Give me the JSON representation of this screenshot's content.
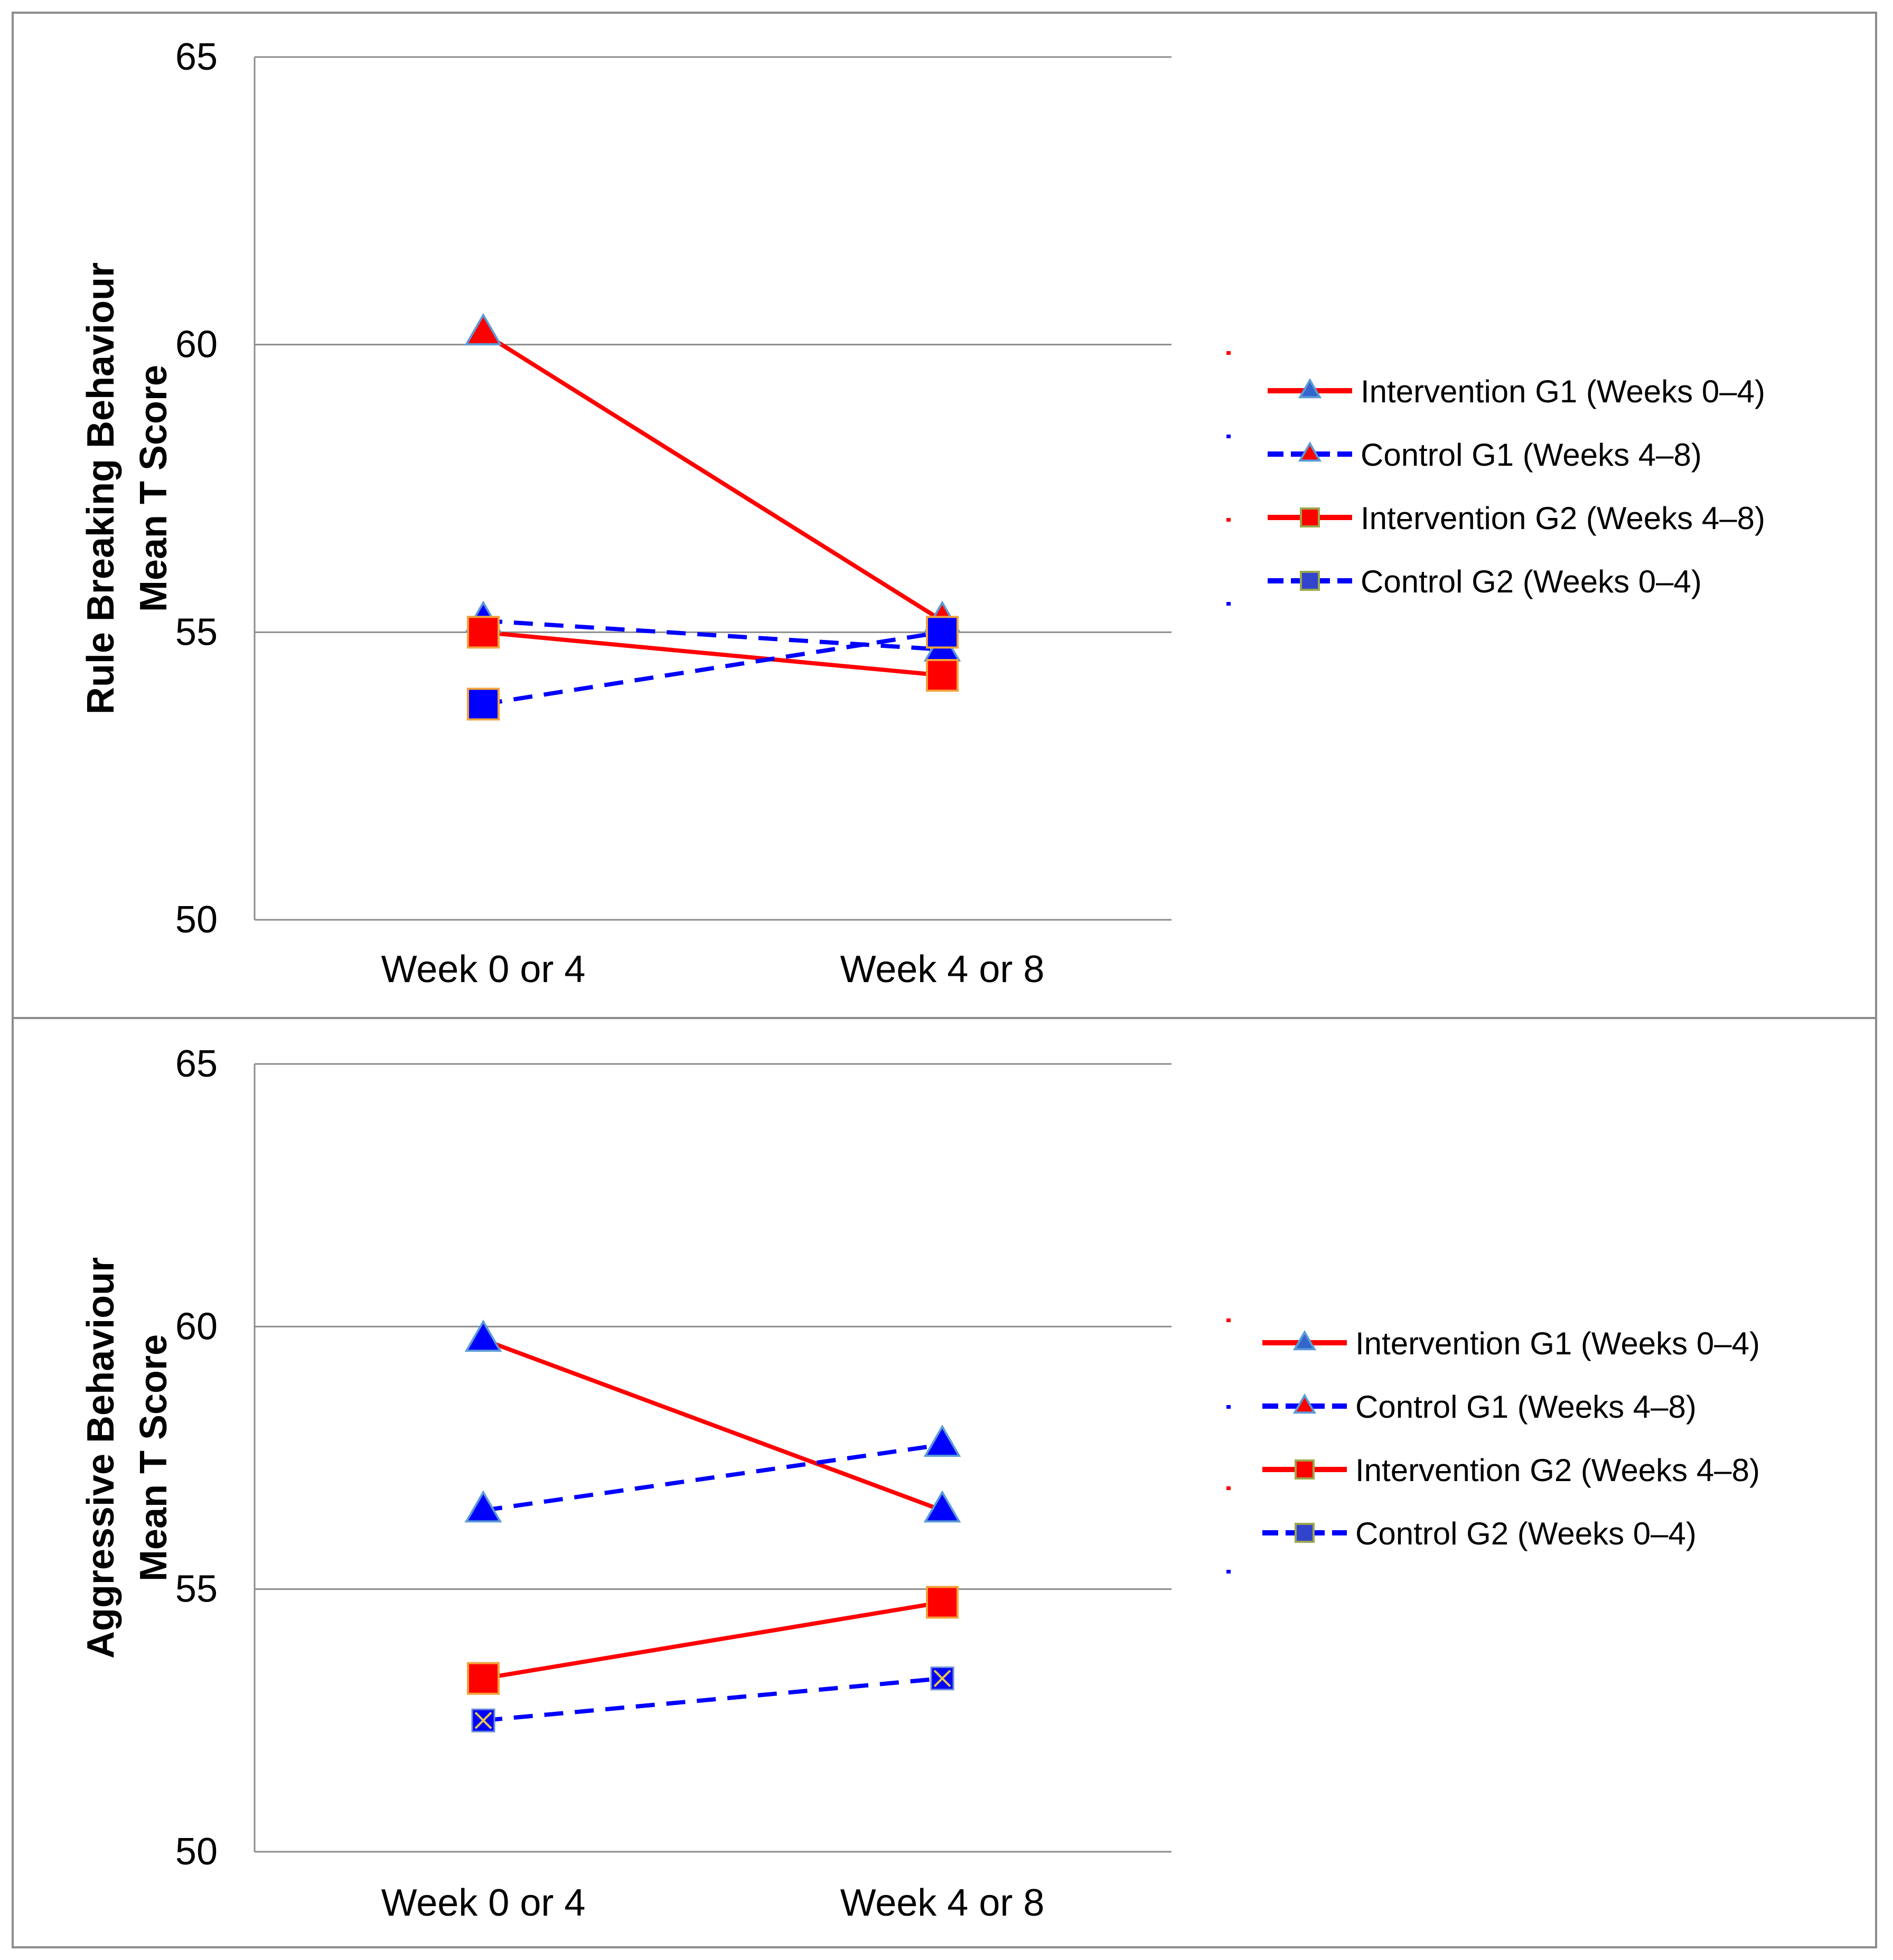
{
  "chart_data": [
    {
      "type": "line",
      "title": "",
      "xlabel": "",
      "ylabel": [
        "Rule Breaking Behaviour",
        "Mean T Score"
      ],
      "categories": [
        "Week 0 or 4",
        "Week 4 or 8"
      ],
      "ylim": [
        50,
        65
      ],
      "yticks": [
        50,
        55,
        60,
        65
      ],
      "grid": true,
      "legend_position": "right",
      "series": [
        {
          "name": "Intervention G1 (Weeks 0–4)",
          "values": [
            60.2,
            55.2
          ],
          "color": "#ff0000",
          "dash": false,
          "marker": "triangle",
          "marker_fill": "#ff0000",
          "legend_marker_fill": "#3366cc"
        },
        {
          "name": "Control G1 (Weeks 4–8)",
          "values": [
            55.2,
            54.7
          ],
          "color": "#0000ff",
          "dash": true,
          "marker": "triangle",
          "marker_fill": "#0000ff",
          "legend_marker_fill": "#ff0000"
        },
        {
          "name": "Intervention G2 (Weeks 4–8)",
          "values": [
            55.0,
            54.25
          ],
          "color": "#ff0000",
          "dash": false,
          "marker": "square",
          "marker_fill": "#ff0000",
          "legend_marker_fill": "#ff0000"
        },
        {
          "name": "Control G2  (Weeks 0–4)",
          "values": [
            53.75,
            55.0
          ],
          "color": "#0000ff",
          "dash": true,
          "marker": "square",
          "marker_fill": "#0000ff",
          "legend_marker_fill": "#3344cc"
        }
      ]
    },
    {
      "type": "line",
      "title": "",
      "xlabel": "",
      "ylabel": [
        "Aggressive Behaviour",
        "Mean T Score"
      ],
      "categories": [
        "Week 0 or 4",
        "Week 4 or 8"
      ],
      "ylim": [
        50,
        65
      ],
      "yticks": [
        50,
        55,
        60,
        65
      ],
      "grid": true,
      "legend_position": "right",
      "series": [
        {
          "name": "Intervention G1 (Weeks 0–4)",
          "values": [
            59.75,
            56.5
          ],
          "color": "#ff0000",
          "dash": false,
          "marker": "triangle",
          "marker_fill": "#0000ff",
          "legend_marker_fill": "#3366cc"
        },
        {
          "name": "Control G1 (Weeks 4–8)",
          "values": [
            56.5,
            57.75
          ],
          "color": "#0000ff",
          "dash": true,
          "marker": "triangle",
          "marker_fill": "#0000ff",
          "legend_marker_fill": "#ff0000"
        },
        {
          "name": "Intervention G2 (Weeks 4–8)",
          "values": [
            53.3,
            54.75
          ],
          "color": "#ff0000",
          "dash": false,
          "marker": "square",
          "marker_fill": "#ff0000",
          "legend_marker_fill": "#ff0000"
        },
        {
          "name": "Control G2  (Weeks 0–4)",
          "values": [
            52.5,
            53.3
          ],
          "color": "#0000ff",
          "dash": true,
          "marker": "x-square",
          "marker_fill": "#0000ff",
          "legend_marker_fill": "#3344cc"
        }
      ]
    }
  ]
}
